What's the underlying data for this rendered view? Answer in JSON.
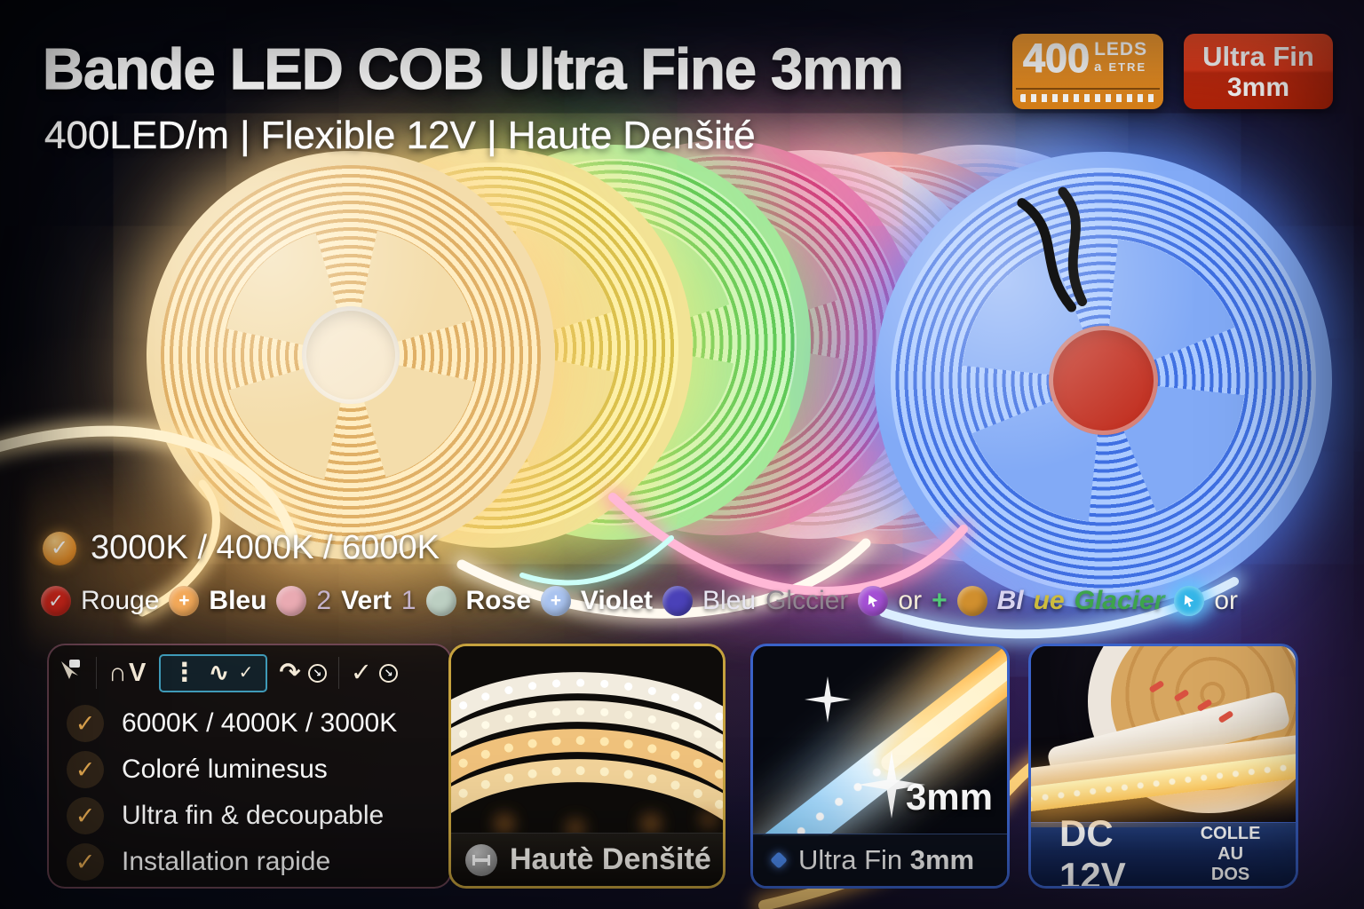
{
  "header": {
    "title": "Bande LED COB Ultra Fine 3mm",
    "subtitle": "400LED/m | Flexible 12V | Haute Denšité"
  },
  "badges": {
    "leds": {
      "value": "400",
      "unit": "LEDS",
      "sub_a": "a",
      "sub": "ETRE",
      "bg": "#e8912c"
    },
    "fin": {
      "line1": "Ultra Fin",
      "line2": "3mm",
      "bg": "#e03a1c"
    }
  },
  "hero": {
    "reels": [
      {
        "name": "reel-warm-white",
        "rim": "#f4ddab",
        "ring_light": "#ffedc2",
        "ring_dark": "#e0b066",
        "hub": "#f8ead0",
        "glow": "rgba(255,208,130,0.50)"
      },
      {
        "name": "reel-warm-yellow",
        "rim": "#f2e395",
        "ring_light": "#fdf4ad",
        "ring_dark": "#d8c049",
        "hub": "#f6eec0",
        "glow": "rgba(255,236,120,0.42)"
      },
      {
        "name": "reel-green",
        "rim": "#a2e99c",
        "ring_light": "#ccf8c4",
        "ring_dark": "#5bc957",
        "hub": "#d8f7cf",
        "glow": "rgba(110,235,110,0.42)"
      },
      {
        "name": "reel-pink",
        "rim": "#f478ad",
        "ring_light": "#ffa2c9",
        "ring_dark": "#e0357f",
        "hub": "#ff93bd",
        "glow": "rgba(255,95,165,0.42)"
      },
      {
        "name": "reel-white",
        "rim": "#f6f0e1",
        "ring_light": "#fffaf0",
        "ring_dark": "#d8ccb2",
        "hub": "#fcf7eb",
        "glow": "rgba(255,245,215,0.40)"
      },
      {
        "name": "reel-coral",
        "rim": "#f68d7c",
        "ring_light": "#ffb4a4",
        "ring_dark": "#e05848",
        "hub": "#ffc3b2",
        "glow": "rgba(255,115,95,0.42)"
      },
      {
        "name": "reel-ice-blue",
        "rim": "#d2eafd",
        "ring_light": "#ebf8ff",
        "ring_dark": "#92c6ef",
        "hub": "#e3f4ff",
        "glow": "rgba(165,218,255,0.48)"
      },
      {
        "name": "reel-blue",
        "rim": "#82aaf6",
        "ring_light": "#abcaff",
        "ring_dark": "#3f70e2",
        "hub": "#c23122",
        "glow": "rgba(85,135,255,0.55)",
        "wires": true
      }
    ]
  },
  "cct": {
    "label": "3000K / 4000K / 6000K"
  },
  "color_row": {
    "tokens": [
      {
        "kind": "dot",
        "name": "red-check-dot",
        "color": "#d9281c",
        "glyph": "✓"
      },
      {
        "kind": "text",
        "name": "label-rouge",
        "text": "Rouge",
        "color": "#ffffff"
      },
      {
        "kind": "dot",
        "name": "orange-plus-dot",
        "color": "#f2a858",
        "glyph": "+"
      },
      {
        "kind": "text",
        "name": "label-bleu",
        "text": "Bleu",
        "color": "#ffffff",
        "bold": true
      },
      {
        "kind": "dot",
        "name": "pink-dot",
        "color": "#e9aab2",
        "glyph": ""
      },
      {
        "kind": "text",
        "name": "label-2",
        "text": "2",
        "color": "#c6b4cc"
      },
      {
        "kind": "text",
        "name": "label-vert",
        "text": "Vert",
        "color": "#ffffff",
        "bold": true
      },
      {
        "kind": "text",
        "name": "label-1",
        "text": "1",
        "color": "#c6b4cc"
      },
      {
        "kind": "dot",
        "name": "sage-dot",
        "color": "#bccfc2",
        "glyph": ""
      },
      {
        "kind": "text",
        "name": "label-rose",
        "text": "Rose",
        "color": "#ffffff",
        "bold": true
      },
      {
        "kind": "dot",
        "name": "periwinkle-plus-dot",
        "color": "#a9c3ef",
        "glyph": "+"
      },
      {
        "kind": "text",
        "name": "label-violet",
        "text": "Violet",
        "color": "#ffffff",
        "bold": true
      },
      {
        "kind": "dot",
        "name": "indigo-dot",
        "color": "#4a41b8",
        "glyph": ""
      },
      {
        "kind": "text",
        "name": "label-bleu-2",
        "text": "Bleu",
        "color": "#e8e6f2"
      },
      {
        "kind": "text",
        "name": "label-glccier",
        "text": "Glccier",
        "color": "#8f8590"
      },
      {
        "kind": "dot",
        "name": "purple-cursor-dot",
        "color": "#a44fd4",
        "glyph": "cursor"
      },
      {
        "kind": "text",
        "name": "label-or",
        "text": "or",
        "color": "#f2ead8"
      },
      {
        "kind": "text",
        "name": "green-plus-sparkle",
        "text": "+",
        "color": "#52c878",
        "bold": true
      },
      {
        "kind": "dot",
        "name": "amber-dot",
        "color": "#d08f2e",
        "glyph": ""
      },
      {
        "kind": "text",
        "name": "label-blue",
        "text": "Bl",
        "color": "#d8d4f0",
        "italic": true,
        "bold": true
      },
      {
        "kind": "text",
        "name": "label-ue",
        "text": "ue",
        "color": "#cdbc3e",
        "italic": true,
        "bold": true
      },
      {
        "kind": "text",
        "name": "label-glacier",
        "text": "Glacier",
        "color": "#3da44c",
        "italic": true,
        "bold": true
      },
      {
        "kind": "dot",
        "name": "cyan-cursor-dot",
        "color": "#35b6e8",
        "glyph": "cursor",
        "glow": true
      },
      {
        "kind": "text",
        "name": "label-or-2",
        "text": "or",
        "color": "#f5f2ea"
      }
    ]
  },
  "features": {
    "toolbar": [
      {
        "name": "cursor-select-icon",
        "glyph": ""
      },
      {
        "name": "arc-vee-icon",
        "glyph": "∩V"
      },
      {
        "name": "wave-arrows-icon",
        "glyph": "⋮ ∿",
        "selected": true
      },
      {
        "name": "curve-redo-icon",
        "glyph": "↷",
        "badge": "↘"
      },
      {
        "name": "check-flow-icon",
        "glyph": "✓",
        "badge": "↘"
      }
    ],
    "check_color": "#eeb054",
    "items": [
      {
        "text": "6000K / 4000K / 3000K"
      },
      {
        "text": "Coloré luminesus"
      },
      {
        "text": "Ultra fin & decoupable"
      },
      {
        "text": "Installation rapide"
      }
    ]
  },
  "panels": {
    "density": {
      "caption": "Hautè Denšité"
    },
    "thin": {
      "depth_label": "3mm",
      "caption_regular": "Ultra Fin ",
      "caption_bold": "3mm"
    },
    "power": {
      "voltage": "DC 12V",
      "glue_line1": "COLLE AU",
      "glue_line2": "DOS"
    }
  }
}
